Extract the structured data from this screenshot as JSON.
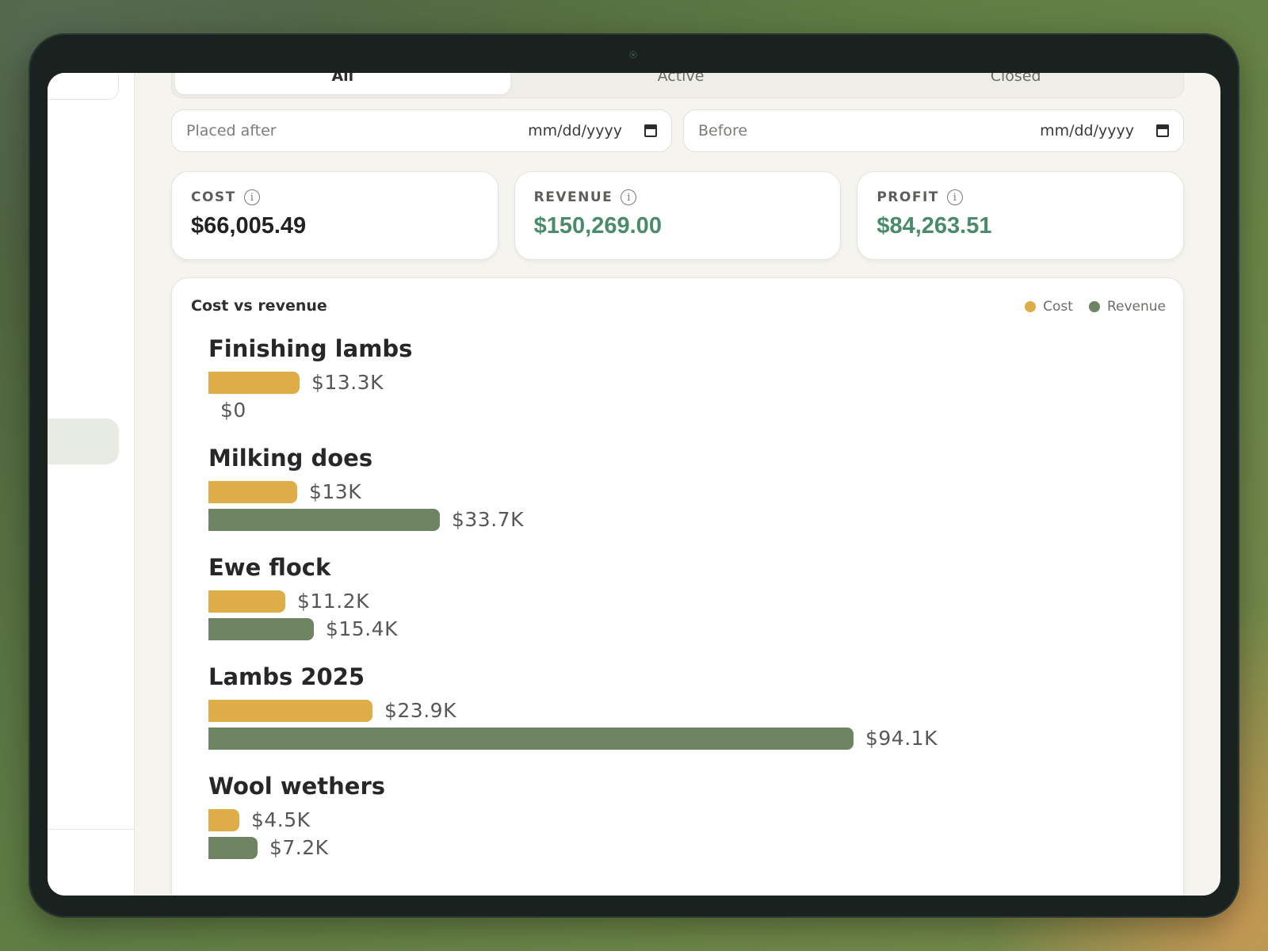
{
  "tabs": [
    {
      "label": "All",
      "active": true
    },
    {
      "label": "Active",
      "active": false
    },
    {
      "label": "Closed",
      "active": false
    }
  ],
  "filters": {
    "after": {
      "label": "Placed after",
      "placeholder": "mm/dd/yyyy"
    },
    "before": {
      "label": "Before",
      "placeholder": "mm/dd/yyyy"
    }
  },
  "stats": {
    "cost": {
      "label": "COST",
      "value": "$66,005.49"
    },
    "revenue": {
      "label": "REVENUE",
      "value": "$150,269.00"
    },
    "profit": {
      "label": "PROFIT",
      "value": "$84,263.51"
    }
  },
  "colors": {
    "cost": "#dfad47",
    "revenue": "#6f8462",
    "positive": "#4a8a6d"
  },
  "chart_data": {
    "type": "bar",
    "title": "Cost vs revenue",
    "legend": [
      "Cost",
      "Revenue"
    ],
    "legend_position": "top-right",
    "categories": [
      "Finishing lambs",
      "Milking does",
      "Ewe flock",
      "Lambs 2025",
      "Wool wethers"
    ],
    "series": [
      {
        "name": "Cost",
        "values": [
          13.3,
          13.0,
          11.2,
          23.9,
          4.5
        ],
        "labels": [
          "$13.3K",
          "$13K",
          "$11.2K",
          "$23.9K",
          "$4.5K"
        ]
      },
      {
        "name": "Revenue",
        "values": [
          0,
          33.7,
          15.4,
          94.1,
          7.2
        ],
        "labels": [
          "$0",
          "$33.7K",
          "$15.4K",
          "$94.1K",
          "$7.2K"
        ]
      }
    ]
  }
}
